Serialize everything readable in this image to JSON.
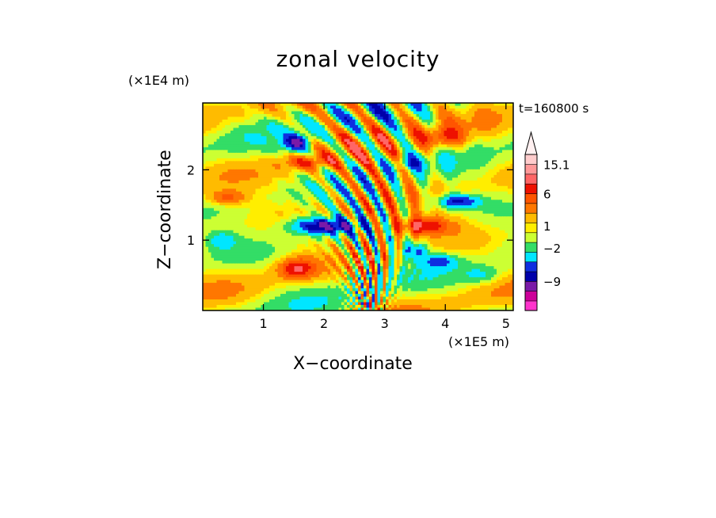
{
  "chart_data": {
    "type": "heatmap",
    "title": "zonal velocity",
    "xlabel": "X−coordinate",
    "ylabel": "Z−coordinate",
    "x_unit": "(×1E5 m)",
    "y_unit": "(×1E4 m)",
    "time_label": "t=160800 s",
    "xlim": [
      0,
      5.12
    ],
    "ylim": [
      0,
      2.95
    ],
    "x_ticks": [
      1,
      2,
      3,
      4,
      5
    ],
    "y_ticks": [
      1,
      2
    ],
    "colorbar": {
      "labels": [
        {
          "value": 15.1,
          "text": "15.1"
        },
        {
          "value": 6,
          "text": "6"
        },
        {
          "value": 1,
          "text": "1"
        },
        {
          "value": -2,
          "text": "−2"
        },
        {
          "value": -9,
          "text": "−9"
        }
      ],
      "levels": [
        {
          "color": "#ff33cc"
        },
        {
          "color": "#cc0099"
        },
        {
          "color": "#7a1aa8"
        },
        {
          "color": "#0000aa"
        },
        {
          "color": "#0f2fe0"
        },
        {
          "color": "#00e6ff"
        },
        {
          "color": "#33dd66"
        },
        {
          "color": "#ccff33"
        },
        {
          "color": "#ffee00"
        },
        {
          "color": "#ffbb00"
        },
        {
          "color": "#ff7700"
        },
        {
          "color": "#ff5500"
        },
        {
          "color": "#ee1100"
        },
        {
          "color": "#ff6666"
        },
        {
          "color": "#ff9999"
        },
        {
          "color": "#ffcccc"
        }
      ],
      "extend_max": true
    },
    "field_description_values": {
      "background_value": 0,
      "features": [
        {
          "kind": "negative_jet",
          "value": -7,
          "x_range": [
            1.4,
            2.8
          ],
          "z_center": 1.2
        },
        {
          "kind": "positive_jet",
          "value": 5,
          "x_range": [
            2.8,
            4.2
          ],
          "z_center": 1.2
        },
        {
          "kind": "negative_lobe",
          "value": -7,
          "x_center": 1.6,
          "z_center": 2.4
        },
        {
          "kind": "negative_lobe",
          "value": -7,
          "x_center": 4.2,
          "z_center": 1.6
        },
        {
          "kind": "positive_lobe",
          "value": 5,
          "x_center": 1.6,
          "z_center": 0.6
        },
        {
          "kind": "positive_lobe",
          "value": 4,
          "x_center": 3.9,
          "z_center": 2.4
        }
      ]
    }
  }
}
